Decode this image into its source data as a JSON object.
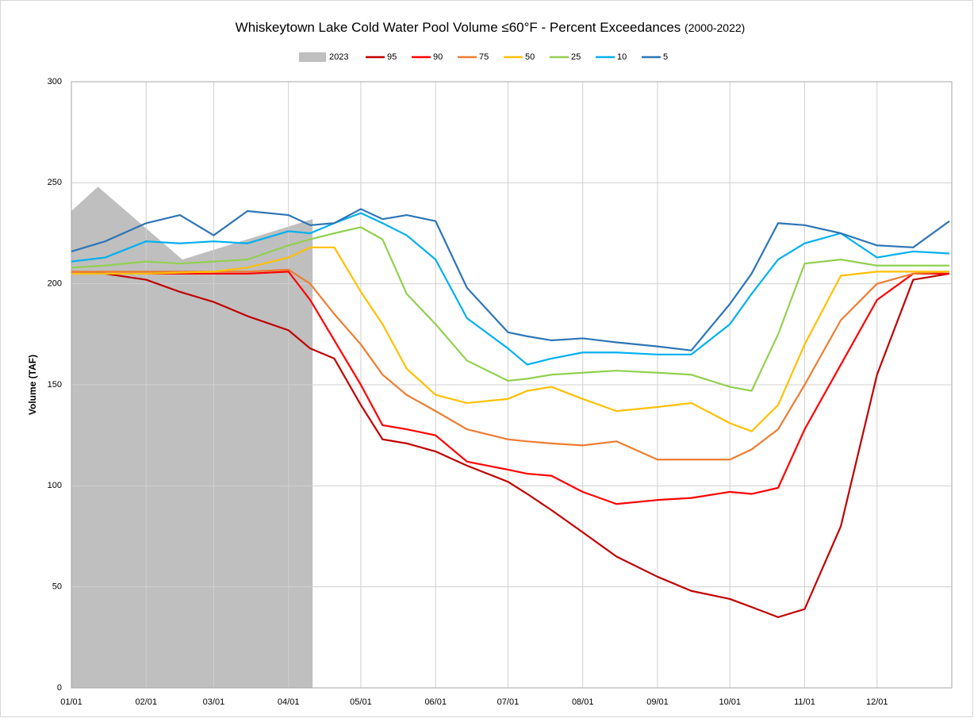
{
  "chart_data": {
    "type": "line",
    "title": "Whiskeytown Lake Cold Water Pool Volume ≤60°F - Percent Exceedances",
    "title_note": "(2000-2022)",
    "y_label": "Volume (TAF)",
    "legend": "top",
    "grid": true,
    "xlim": [
      1,
      366
    ],
    "xticks": [
      {
        "value": 1,
        "label": "01/01"
      },
      {
        "value": 32,
        "label": "02/01"
      },
      {
        "value": 60,
        "label": "03/01"
      },
      {
        "value": 91,
        "label": "04/01"
      },
      {
        "value": 121,
        "label": "05/01"
      },
      {
        "value": 152,
        "label": "06/01"
      },
      {
        "value": 182,
        "label": "07/01"
      },
      {
        "value": 213,
        "label": "08/01"
      },
      {
        "value": 244,
        "label": "09/01"
      },
      {
        "value": 274,
        "label": "10/01"
      },
      {
        "value": 305,
        "label": "11/01"
      },
      {
        "value": 335,
        "label": "12/01"
      }
    ],
    "ylim": [
      0,
      300
    ],
    "yticks": [
      0,
      50,
      100,
      150,
      200,
      250,
      300
    ],
    "x": [
      1,
      15,
      32,
      46,
      60,
      74,
      91,
      100,
      110,
      121,
      130,
      140,
      152,
      165,
      182,
      190,
      200,
      213,
      227,
      244,
      258,
      274,
      283,
      294,
      305,
      320,
      335,
      350,
      365
    ],
    "series": [
      {
        "name": "2023",
        "kind": "area",
        "color": "#bfbfbf",
        "x": [
          1,
          12,
          47,
          101
        ],
        "values": [
          236,
          248,
          212,
          232
        ]
      },
      {
        "name": "95",
        "color": "#c00000",
        "values": [
          205,
          205,
          202,
          196,
          191,
          184,
          177,
          168,
          163,
          140,
          123,
          121,
          117,
          110,
          102,
          96,
          88,
          77,
          65,
          55,
          48,
          44,
          40,
          35,
          39,
          80,
          155,
          202,
          205
        ]
      },
      {
        "name": "90",
        "color": "#ff0000",
        "values": [
          205,
          205,
          205,
          205,
          205,
          205,
          206,
          192,
          172,
          150,
          130,
          128,
          125,
          112,
          108,
          106,
          105,
          97,
          91,
          93,
          94,
          97,
          96,
          99,
          128,
          160,
          192,
          205,
          205
        ]
      },
      {
        "name": "75",
        "color": "#ed7d31",
        "values": [
          206,
          206,
          206,
          206,
          206,
          206,
          207,
          200,
          185,
          170,
          155,
          145,
          137,
          128,
          123,
          122,
          121,
          120,
          122,
          113,
          113,
          113,
          118,
          128,
          150,
          182,
          200,
          205,
          206
        ]
      },
      {
        "name": "50",
        "color": "#ffc000",
        "values": [
          205,
          205,
          205,
          205.5,
          206,
          208,
          213,
          218,
          218,
          196,
          180,
          158,
          145,
          141,
          143,
          147,
          149,
          143,
          137,
          139,
          141,
          131,
          127,
          140,
          170,
          204,
          206,
          206,
          206
        ]
      },
      {
        "name": "25",
        "color": "#92d050",
        "values": [
          208,
          209,
          211,
          210,
          211,
          212,
          219,
          222,
          225,
          228,
          222,
          195,
          180,
          162,
          152,
          153,
          155,
          156,
          157,
          156,
          155,
          149,
          147,
          175,
          210,
          212,
          209,
          209,
          209
        ]
      },
      {
        "name": "10",
        "color": "#00b0f0",
        "values": [
          211,
          213,
          221,
          220,
          221,
          220,
          226,
          225,
          230,
          235,
          230,
          224,
          212,
          183,
          168,
          160,
          163,
          166,
          166,
          165,
          165,
          180,
          195,
          212,
          220,
          225,
          213,
          216,
          215
        ]
      },
      {
        "name": "5",
        "color": "#2e75b6",
        "values": [
          216,
          221,
          230,
          234,
          224,
          236,
          234,
          229,
          230,
          237,
          232,
          234,
          231,
          198,
          176,
          174,
          172,
          173,
          171,
          169,
          167,
          190,
          205,
          230,
          229,
          225,
          219,
          218,
          231
        ]
      }
    ]
  }
}
